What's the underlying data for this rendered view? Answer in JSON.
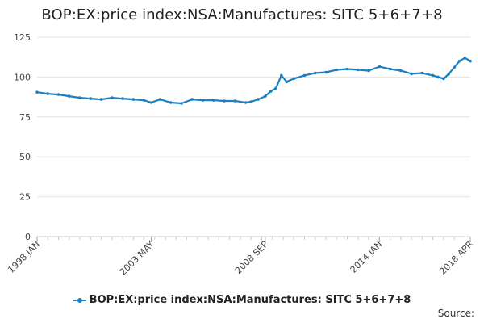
{
  "title": "BOP:EX:price index:NSA:Manufactures: SITC 5+6+7+8",
  "source_label": "Source:",
  "series_color": "#1f7fbf",
  "chart_data": {
    "type": "line",
    "title": "BOP:EX:price index:NSA:Manufactures: SITC 5+6+7+8",
    "xlabel": "",
    "ylabel": "",
    "ylim": [
      0,
      125
    ],
    "yticks": [
      0,
      25,
      50,
      75,
      100,
      125
    ],
    "x_tick_labels": [
      "1998 JAN",
      "2003 MAY",
      "2008 SEP",
      "2014 JAN",
      "2018 APR"
    ],
    "x_tick_positions": [
      "1998-01",
      "2003-05",
      "2008-09",
      "2014-01",
      "2018-04"
    ],
    "x_range": [
      "1998-01",
      "2018-04"
    ],
    "grid": true,
    "legend_position": "bottom",
    "series": [
      {
        "name": "BOP:EX:price index:NSA:Manufactures: SITC 5+6+7+8",
        "x": [
          "1998-01",
          "1998-07",
          "1999-01",
          "1999-07",
          "2000-01",
          "2000-07",
          "2001-01",
          "2001-07",
          "2002-01",
          "2002-07",
          "2003-01",
          "2003-05",
          "2003-10",
          "2004-04",
          "2004-10",
          "2005-04",
          "2005-10",
          "2006-04",
          "2006-10",
          "2007-04",
          "2007-10",
          "2008-01",
          "2008-05",
          "2008-09",
          "2008-12",
          "2009-03",
          "2009-06",
          "2009-09",
          "2010-01",
          "2010-07",
          "2011-01",
          "2011-07",
          "2012-01",
          "2012-07",
          "2013-01",
          "2013-07",
          "2014-01",
          "2014-07",
          "2015-01",
          "2015-07",
          "2016-01",
          "2016-07",
          "2016-10",
          "2017-01",
          "2017-04",
          "2017-07",
          "2017-10",
          "2018-01",
          "2018-04"
        ],
        "values": [
          90.5,
          89.5,
          89,
          88,
          87,
          86.5,
          86,
          87,
          86.5,
          86,
          85.5,
          84,
          86,
          84,
          83.5,
          86,
          85.5,
          85.5,
          85,
          85,
          84,
          84.5,
          86,
          88,
          91,
          93,
          101,
          97,
          99,
          101,
          102.5,
          103,
          104.5,
          105,
          104.5,
          104,
          106.5,
          105,
          104,
          102,
          102.5,
          101,
          100,
          99,
          102,
          106,
          110,
          112,
          110
        ]
      }
    ]
  }
}
